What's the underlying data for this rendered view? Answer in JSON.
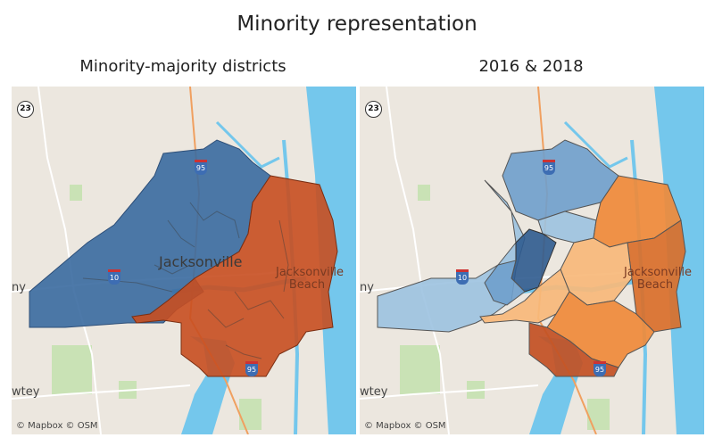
{
  "title": "Minority representation",
  "panels": [
    {
      "subtitle": "Minority-majority districts"
    },
    {
      "subtitle": "2016 & 2018"
    }
  ],
  "map": {
    "city_label": "Jacksonville",
    "beach_label": "Jacksonville Beach",
    "edge_label_1": "ny",
    "edge_label_2": "wtey",
    "attribution": "© Mapbox © OSM",
    "route_23": "23",
    "interstate_95": "95",
    "interstate_10": "10"
  },
  "colors": {
    "land": "#ece7df",
    "water": "#74c7ec",
    "park": "#c9e2b5",
    "road": "#ffffff",
    "highway": "#f0a060",
    "left_majority_blue": "#3a6aa0",
    "left_majority_orange": "#c84e20",
    "right_light_blue": "#9cc2e0",
    "right_mid_blue": "#6f9fcc",
    "right_dark_blue": "#2f5b8f",
    "right_orange": "#ef8a3a",
    "right_light_orange": "#f7b979",
    "right_dark_orange": "#c25023"
  }
}
